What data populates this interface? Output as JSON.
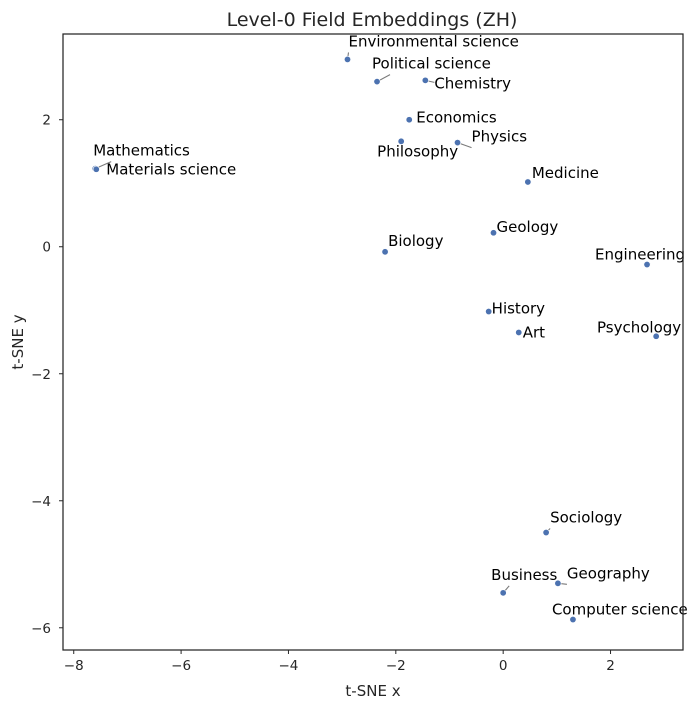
{
  "chart_data": {
    "type": "scatter",
    "title": "Level-0 Field Embeddings (ZH)",
    "xlabel": "t-SNE x",
    "ylabel": "t-SNE y",
    "xlim": [
      -8.2,
      3.35
    ],
    "ylim": [
      -6.35,
      3.35
    ],
    "xticks": [
      -8,
      -6,
      -4,
      -2,
      0,
      2
    ],
    "yticks": [
      -6,
      -4,
      -2,
      0,
      2
    ],
    "grid": false,
    "point_color": "#4c72b0",
    "points": [
      {
        "label": "Environmental science",
        "x": -2.9,
        "y": 2.95
      },
      {
        "label": "Political science",
        "x": -2.35,
        "y": 2.6
      },
      {
        "label": "Chemistry",
        "x": -1.45,
        "y": 2.62
      },
      {
        "label": "Economics",
        "x": -1.75,
        "y": 2.0
      },
      {
        "label": "Physics",
        "x": -0.85,
        "y": 1.64
      },
      {
        "label": "Philosophy",
        "x": -1.9,
        "y": 1.66
      },
      {
        "label": "Mathematics",
        "x": -7.6,
        "y": 1.23
      },
      {
        "label": "Materials science",
        "x": -7.58,
        "y": 1.22
      },
      {
        "label": "Medicine",
        "x": 0.46,
        "y": 1.02
      },
      {
        "label": "Geology",
        "x": -0.18,
        "y": 0.22
      },
      {
        "label": "Biology",
        "x": -2.2,
        "y": -0.08
      },
      {
        "label": "Engineering",
        "x": 2.68,
        "y": -0.28
      },
      {
        "label": "History",
        "x": -0.27,
        "y": -1.02
      },
      {
        "label": "Art",
        "x": 0.29,
        "y": -1.35
      },
      {
        "label": "Psychology",
        "x": 2.85,
        "y": -1.41
      },
      {
        "label": "Sociology",
        "x": 0.8,
        "y": -4.5
      },
      {
        "label": "Business",
        "x": 0.0,
        "y": -5.45
      },
      {
        "label": "Geography",
        "x": 1.02,
        "y": -5.3
      },
      {
        "label": "Computer science",
        "x": 1.3,
        "y": -5.87
      }
    ]
  }
}
